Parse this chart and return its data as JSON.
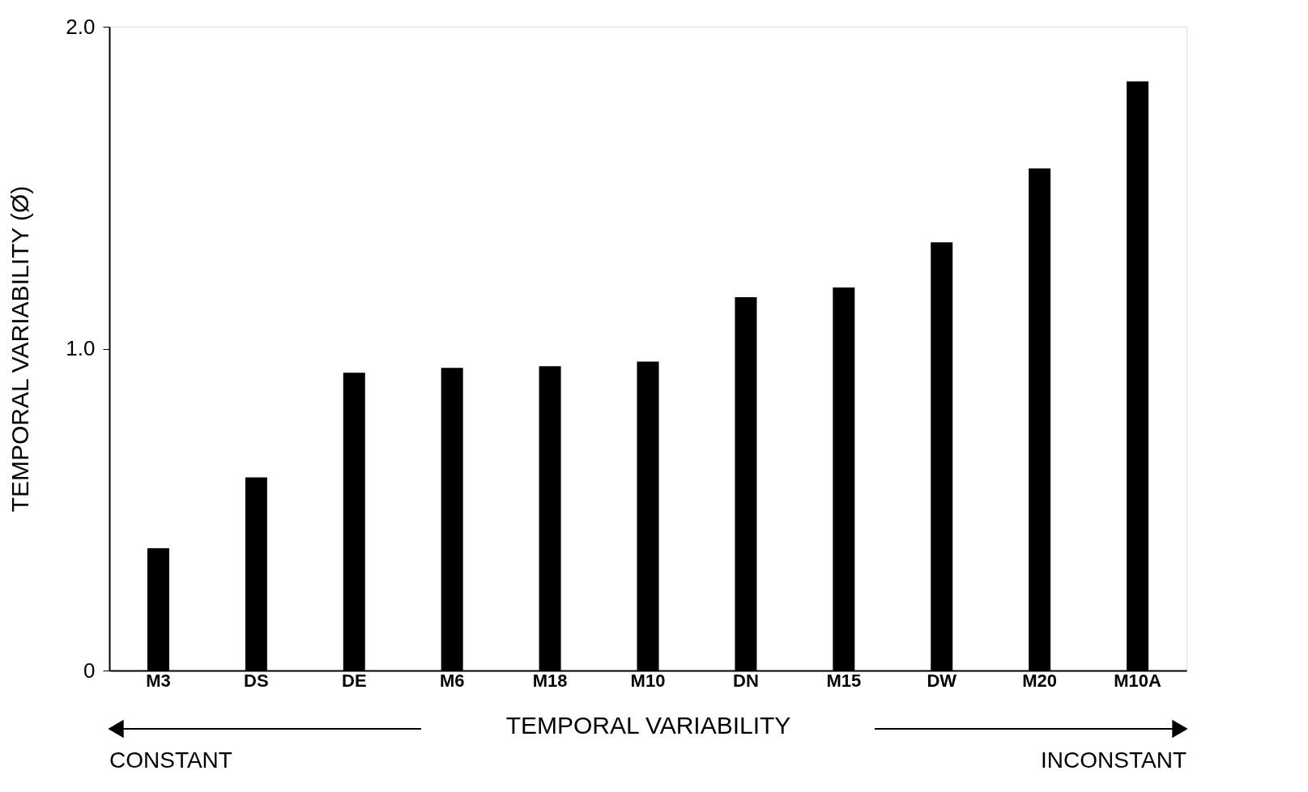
{
  "chart_data": {
    "type": "bar",
    "categories": [
      "M3",
      "DS",
      "DE",
      "M6",
      "M18",
      "M10",
      "DN",
      "M15",
      "DW",
      "M20",
      "M10A"
    ],
    "values": [
      0.38,
      0.6,
      0.925,
      0.94,
      0.945,
      0.96,
      1.16,
      1.19,
      1.33,
      1.56,
      1.83
    ],
    "color": "#000000",
    "ylim": [
      0,
      2.0
    ],
    "yticks": [
      0,
      {
        "value": 1,
        "label": "1.0"
      },
      {
        "value": 2,
        "label": "2.0"
      }
    ],
    "ylabel": "TEMPORAL VARIABILITY (Ø)",
    "xlabel": "TEMPORAL VARIABILITY",
    "annotations": [
      "CONSTANT",
      "INCONSTANT"
    ],
    "grid": false
  }
}
